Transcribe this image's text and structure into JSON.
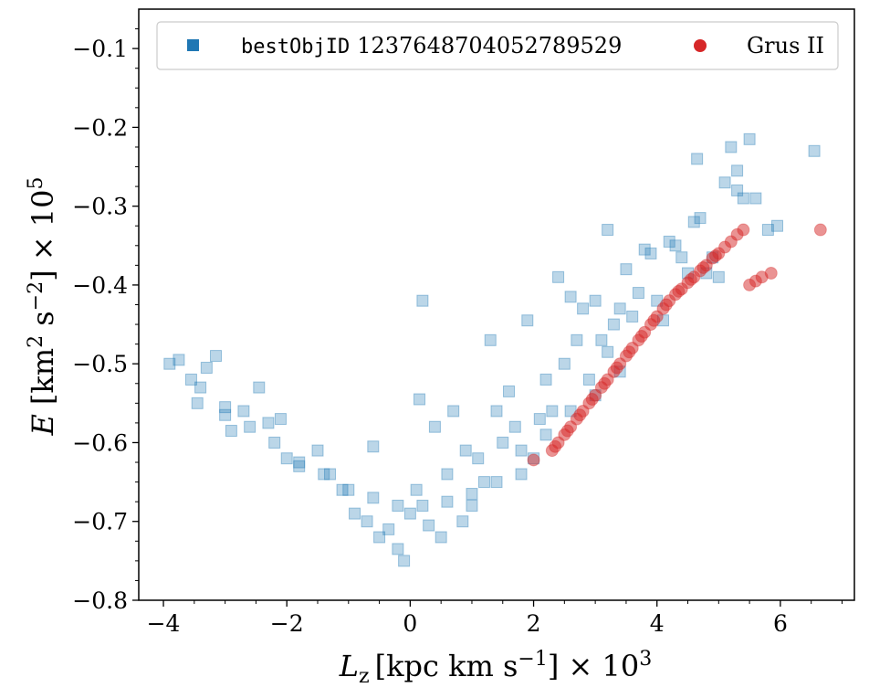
{
  "chart_data": {
    "type": "scatter",
    "title": "",
    "xlabel": "L_z [kpc km s^-1] × 10^3",
    "ylabel": "E [km^2 s^-2] × 10^5",
    "xlabel_parts": {
      "sym": "L",
      "sub": "z",
      "unit_pre": "[kpc km s",
      "sup": "−1",
      "unit_post": "] × 10",
      "exp": "3"
    },
    "ylabel_parts": {
      "sym": "E",
      "unit_pre": "[km",
      "sup1": "2",
      "mid": " s",
      "sup2": "−2",
      "unit_post": "] × 10",
      "exp": "5"
    },
    "xlim": [
      -4.4,
      7.2
    ],
    "ylim": [
      -0.8,
      -0.05
    ],
    "xticks": [
      -4,
      -2,
      0,
      2,
      4,
      6
    ],
    "xtick_labels": [
      "−4",
      "−2",
      "0",
      "2",
      "4",
      "6"
    ],
    "yticks": [
      -0.8,
      -0.7,
      -0.6,
      -0.5,
      -0.4,
      -0.3,
      -0.2,
      -0.1
    ],
    "ytick_labels": [
      "−0.8",
      "−0.7",
      "−0.6",
      "−0.5",
      "−0.4",
      "−0.3",
      "−0.2",
      "−0.1"
    ],
    "grid": false,
    "legend_placement": "top",
    "series": [
      {
        "name": "bestObjID 1237648704052789529",
        "legend_mono": "bestObjID",
        "legend_rest": "1237648704052789529",
        "marker": "square",
        "color": "#1f77b4",
        "alpha": 0.3,
        "points": [
          [
            -3.9,
            -0.5
          ],
          [
            -3.75,
            -0.495
          ],
          [
            -3.55,
            -0.52
          ],
          [
            -3.45,
            -0.55
          ],
          [
            -3.3,
            -0.505
          ],
          [
            -3.15,
            -0.49
          ],
          [
            -3.0,
            -0.565
          ],
          [
            -2.9,
            -0.585
          ],
          [
            -2.7,
            -0.56
          ],
          [
            -2.45,
            -0.53
          ],
          [
            -2.3,
            -0.575
          ],
          [
            -2.1,
            -0.57
          ],
          [
            -2.0,
            -0.62
          ],
          [
            -1.8,
            -0.63
          ],
          [
            -1.5,
            -0.61
          ],
          [
            -1.3,
            -0.64
          ],
          [
            -1.1,
            -0.66
          ],
          [
            -0.9,
            -0.69
          ],
          [
            -0.7,
            -0.7
          ],
          [
            -0.6,
            -0.605
          ],
          [
            -0.5,
            -0.72
          ],
          [
            -0.35,
            -0.71
          ],
          [
            -0.2,
            -0.735
          ],
          [
            -0.1,
            -0.75
          ],
          [
            0.0,
            -0.69
          ],
          [
            0.1,
            -0.66
          ],
          [
            0.2,
            -0.42
          ],
          [
            0.15,
            -0.545
          ],
          [
            0.3,
            -0.705
          ],
          [
            0.4,
            -0.58
          ],
          [
            0.5,
            -0.72
          ],
          [
            0.6,
            -0.64
          ],
          [
            0.7,
            -0.56
          ],
          [
            0.85,
            -0.7
          ],
          [
            0.9,
            -0.61
          ],
          [
            1.0,
            -0.68
          ],
          [
            1.1,
            -0.62
          ],
          [
            1.2,
            -0.65
          ],
          [
            1.3,
            -0.47
          ],
          [
            1.4,
            -0.56
          ],
          [
            1.5,
            -0.6
          ],
          [
            1.6,
            -0.535
          ],
          [
            1.7,
            -0.58
          ],
          [
            1.8,
            -0.61
          ],
          [
            1.9,
            -0.445
          ],
          [
            2.0,
            -0.62
          ],
          [
            2.1,
            -0.57
          ],
          [
            2.2,
            -0.52
          ],
          [
            2.3,
            -0.56
          ],
          [
            2.4,
            -0.39
          ],
          [
            2.5,
            -0.5
          ],
          [
            2.6,
            -0.415
          ],
          [
            2.7,
            -0.47
          ],
          [
            2.8,
            -0.43
          ],
          [
            2.9,
            -0.52
          ],
          [
            3.0,
            -0.42
          ],
          [
            3.1,
            -0.47
          ],
          [
            3.2,
            -0.33
          ],
          [
            3.3,
            -0.45
          ],
          [
            3.4,
            -0.51
          ],
          [
            3.5,
            -0.38
          ],
          [
            3.6,
            -0.44
          ],
          [
            3.7,
            -0.41
          ],
          [
            3.8,
            -0.355
          ],
          [
            3.9,
            -0.36
          ],
          [
            4.0,
            -0.42
          ],
          [
            4.1,
            -0.445
          ],
          [
            4.2,
            -0.345
          ],
          [
            4.3,
            -0.35
          ],
          [
            4.4,
            -0.365
          ],
          [
            4.5,
            -0.385
          ],
          [
            4.6,
            -0.32
          ],
          [
            4.65,
            -0.24
          ],
          [
            4.7,
            -0.315
          ],
          [
            4.8,
            -0.385
          ],
          [
            4.9,
            -0.365
          ],
          [
            5.0,
            -0.39
          ],
          [
            5.1,
            -0.27
          ],
          [
            5.2,
            -0.225
          ],
          [
            5.3,
            -0.255
          ],
          [
            5.3,
            -0.28
          ],
          [
            5.4,
            -0.29
          ],
          [
            5.5,
            -0.215
          ],
          [
            5.6,
            -0.29
          ],
          [
            5.8,
            -0.33
          ],
          [
            5.95,
            -0.325
          ],
          [
            6.55,
            -0.23
          ],
          [
            3.4,
            -0.43
          ],
          [
            3.2,
            -0.485
          ],
          [
            3.0,
            -0.54
          ],
          [
            2.6,
            -0.56
          ],
          [
            2.2,
            -0.59
          ],
          [
            1.8,
            -0.64
          ],
          [
            1.4,
            -0.65
          ],
          [
            1.0,
            -0.665
          ],
          [
            0.6,
            -0.675
          ],
          [
            0.2,
            -0.68
          ],
          [
            -0.2,
            -0.68
          ],
          [
            -0.6,
            -0.67
          ],
          [
            -1.0,
            -0.66
          ],
          [
            -1.4,
            -0.64
          ],
          [
            -1.8,
            -0.625
          ],
          [
            -2.2,
            -0.6
          ],
          [
            -2.6,
            -0.58
          ],
          [
            -3.0,
            -0.555
          ],
          [
            -3.4,
            -0.53
          ]
        ]
      },
      {
        "name": "Grus II",
        "marker": "circle",
        "color": "#d62728",
        "alpha": 0.35,
        "points": [
          [
            2.3,
            -0.61
          ],
          [
            2.4,
            -0.6
          ],
          [
            2.5,
            -0.59
          ],
          [
            2.6,
            -0.58
          ],
          [
            2.7,
            -0.57
          ],
          [
            2.8,
            -0.56
          ],
          [
            2.9,
            -0.55
          ],
          [
            3.0,
            -0.54
          ],
          [
            3.1,
            -0.53
          ],
          [
            3.2,
            -0.52
          ],
          [
            3.3,
            -0.51
          ],
          [
            3.4,
            -0.5
          ],
          [
            3.5,
            -0.49
          ],
          [
            3.6,
            -0.48
          ],
          [
            3.7,
            -0.47
          ],
          [
            3.8,
            -0.46
          ],
          [
            3.9,
            -0.45
          ],
          [
            4.0,
            -0.44
          ],
          [
            4.1,
            -0.43
          ],
          [
            4.2,
            -0.42
          ],
          [
            4.3,
            -0.412
          ],
          [
            4.4,
            -0.405
          ],
          [
            4.5,
            -0.397
          ],
          [
            4.6,
            -0.39
          ],
          [
            4.7,
            -0.382
          ],
          [
            4.8,
            -0.375
          ],
          [
            4.9,
            -0.366
          ],
          [
            5.0,
            -0.36
          ],
          [
            5.1,
            -0.352
          ],
          [
            5.2,
            -0.345
          ],
          [
            5.3,
            -0.336
          ],
          [
            5.4,
            -0.33
          ],
          [
            5.5,
            -0.4
          ],
          [
            5.6,
            -0.395
          ],
          [
            5.7,
            -0.39
          ],
          [
            5.85,
            -0.385
          ],
          [
            6.65,
            -0.33
          ],
          [
            2.0,
            -0.622
          ],
          [
            2.35,
            -0.605
          ],
          [
            2.55,
            -0.585
          ],
          [
            2.75,
            -0.565
          ],
          [
            2.95,
            -0.545
          ],
          [
            3.15,
            -0.525
          ],
          [
            3.35,
            -0.505
          ],
          [
            3.55,
            -0.485
          ],
          [
            3.75,
            -0.465
          ],
          [
            3.95,
            -0.445
          ],
          [
            4.15,
            -0.425
          ],
          [
            4.35,
            -0.408
          ],
          [
            4.55,
            -0.393
          ],
          [
            4.75,
            -0.378
          ],
          [
            4.95,
            -0.363
          ]
        ]
      }
    ]
  }
}
